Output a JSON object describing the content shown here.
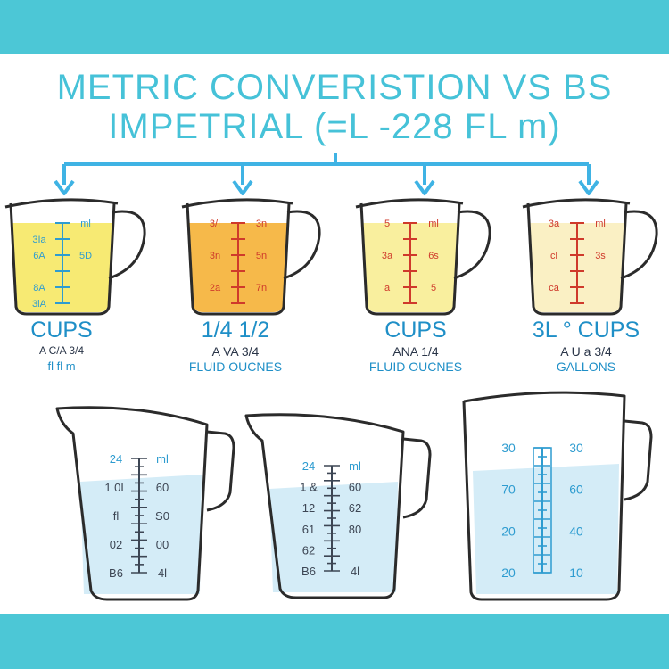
{
  "colors": {
    "band": "#4cc7d6",
    "title": "#46c2d8",
    "arrow": "#3fb3e4",
    "label_blue": "#1f8fc7",
    "label_dark": "#2a3548",
    "scale_red": "#cf3a2b",
    "scale_blue": "#2e9cd0",
    "scale_dark": "#3d4654",
    "outline": "#2b2b2b",
    "yellow": "#f7ea73",
    "orange": "#f6b94a",
    "pale_yellow": "#f9ef9e",
    "cream": "#faf0c4",
    "water": "#d4ecf7"
  },
  "title": {
    "line1": "METRIC CONVERISTION VS BS",
    "line2": "IMPETRIAL (=L -228 FL m)"
  },
  "top_cups": [
    {
      "name": "cup-1",
      "fill": "yellow",
      "scale_color": "scale_blue",
      "marks": [
        "",
        "3Ia",
        "6A",
        "",
        "8A",
        "3lA"
      ],
      "right_marks": [
        "ml",
        "",
        "5D",
        "",
        "",
        ""
      ],
      "caption_big": "CUPS",
      "caption_mid": "A C/A 3/4",
      "caption_small": "fl fl m"
    },
    {
      "name": "cup-2",
      "fill": "orange",
      "scale_color": "scale_red",
      "marks": [
        "3/I",
        "",
        "3n",
        "",
        "2a",
        ""
      ],
      "right_marks": [
        "3n",
        "",
        "5n",
        "",
        "7n",
        ""
      ],
      "caption_big": "1/4 1/2",
      "caption_mid": "A VA 3/4",
      "caption_small": "FLUID OUCNES"
    },
    {
      "name": "cup-3",
      "fill": "pale_yellow",
      "scale_color": "scale_red",
      "marks": [
        "5",
        "",
        "3a",
        "",
        "a",
        ""
      ],
      "right_marks": [
        "ml",
        "",
        "6s",
        "",
        "5",
        ""
      ],
      "caption_big": "CUPS",
      "caption_mid": "ANA 1/4",
      "caption_small": "FLUID OUCNES"
    },
    {
      "name": "cup-4",
      "fill": "cream",
      "scale_color": "scale_red",
      "marks": [
        "3a",
        "",
        "cl",
        "",
        "ca",
        ""
      ],
      "right_marks": [
        "ml",
        "",
        "3s",
        "",
        "",
        ""
      ],
      "caption_big": "3L ° CUPS",
      "caption_mid": "A U a 3/4",
      "caption_small": "GALLONS"
    }
  ],
  "bottom_jugs": [
    {
      "name": "jug-1",
      "left_marks": [
        "24",
        "1 0L",
        "fl",
        "02",
        "B6"
      ],
      "right_marks": [
        "ml",
        "60",
        "S0",
        "00",
        "4l"
      ]
    },
    {
      "name": "jug-2",
      "left_marks": [
        "24",
        "1 &",
        "12",
        "61",
        "62",
        "B6"
      ],
      "right_marks": [
        "ml",
        "60",
        "62",
        "80",
        "",
        "4l"
      ]
    },
    {
      "name": "jug-3",
      "left_marks": [
        "30",
        "70",
        "20",
        "20"
      ],
      "right_marks": [
        "30",
        "60",
        "40",
        "10"
      ]
    }
  ]
}
